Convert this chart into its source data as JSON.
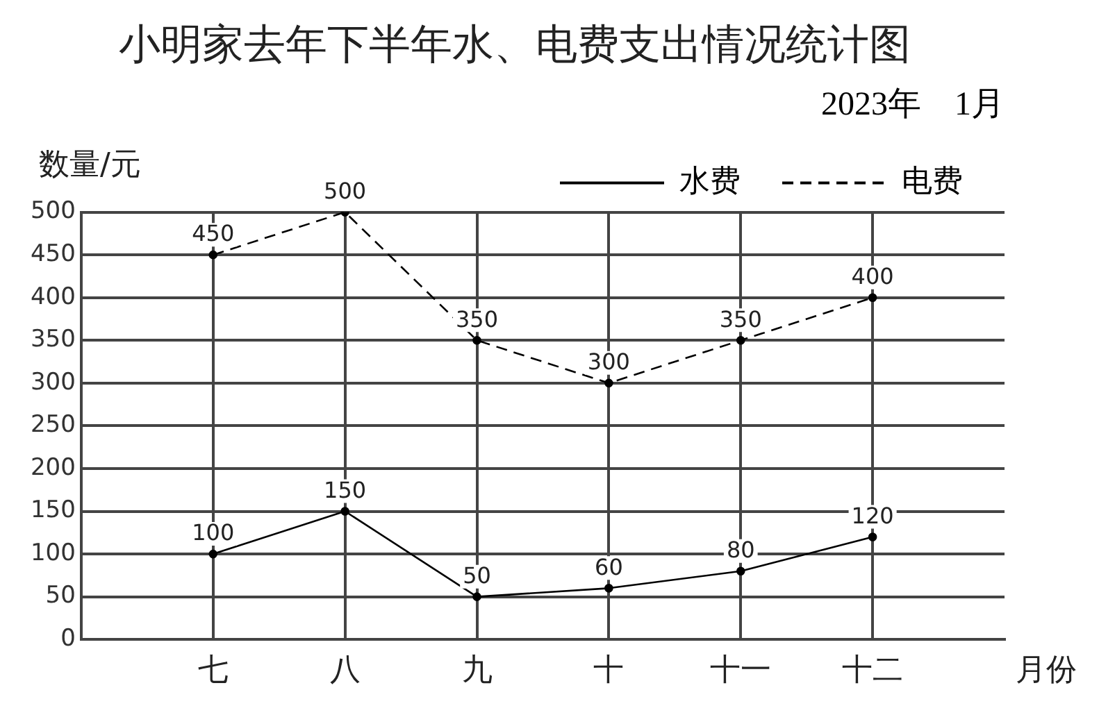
{
  "chart_data": {
    "type": "line",
    "title": "小明家去年下半年水、电费支出情况统计图",
    "subtitle": "2023年　1月",
    "ylabel": "数量/元",
    "xlabel": "月份",
    "categories": [
      "七",
      "八",
      "九",
      "十",
      "十一",
      "十二"
    ],
    "series": [
      {
        "name": "水费",
        "color": "#000000",
        "line_style": "solid",
        "values": [
          100,
          150,
          50,
          60,
          80,
          120
        ]
      },
      {
        "name": "电费",
        "color": "#000000",
        "line_style": "dashed",
        "values": [
          450,
          500,
          350,
          300,
          350,
          400
        ]
      }
    ],
    "ylim": [
      0,
      500
    ],
    "yticks": [
      0,
      50,
      100,
      150,
      200,
      250,
      300,
      350,
      400,
      450,
      500
    ],
    "grid": true,
    "legend": "top right",
    "marker": "circle",
    "data_labels": true
  }
}
